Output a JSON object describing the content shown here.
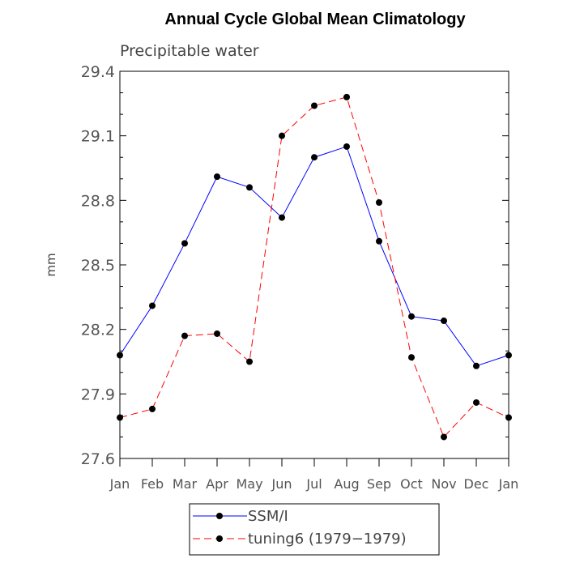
{
  "chart_data": {
    "type": "line",
    "title": "Annual Cycle Global Mean Climatology",
    "subtitle": "Precipitable water",
    "xlabel": "",
    "ylabel": "mm",
    "ylim": [
      27.6,
      29.4
    ],
    "yticks": [
      "27.6",
      "27.9",
      "28.2",
      "28.5",
      "28.8",
      "29.1",
      "29.4"
    ],
    "categories": [
      "Jan",
      "Feb",
      "Mar",
      "Apr",
      "May",
      "Jun",
      "Jul",
      "Aug",
      "Sep",
      "Oct",
      "Nov",
      "Dec",
      "Jan"
    ],
    "legend_position": "bottom",
    "series": [
      {
        "name": "SSM/I",
        "color": "#0000ff",
        "dash": "solid",
        "values": [
          28.08,
          28.31,
          28.6,
          28.91,
          28.86,
          28.72,
          29.0,
          29.05,
          28.61,
          28.26,
          28.24,
          28.03,
          28.08
        ]
      },
      {
        "name": "tuning6 (1979−1979)",
        "color": "#ff0000",
        "dash": "dashed",
        "values": [
          27.79,
          27.83,
          28.17,
          28.18,
          28.05,
          29.1,
          29.24,
          29.28,
          28.79,
          28.07,
          27.7,
          27.86,
          27.79
        ]
      }
    ]
  }
}
